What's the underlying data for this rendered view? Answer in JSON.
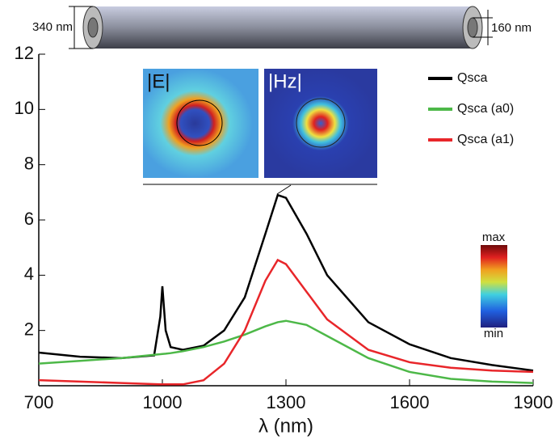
{
  "chart_data": {
    "type": "line",
    "x": [
      700,
      800,
      900,
      980,
      995,
      1000,
      1008,
      1020,
      1050,
      1100,
      1150,
      1200,
      1250,
      1280,
      1300,
      1350,
      1400,
      1500,
      1600,
      1700,
      1800,
      1900
    ],
    "series": [
      {
        "name": "Qsca",
        "color": "#000000",
        "values": [
          1.2,
          1.05,
          1.0,
          1.1,
          2.5,
          3.6,
          2.0,
          1.4,
          1.3,
          1.45,
          2.0,
          3.2,
          5.5,
          6.9,
          6.8,
          5.5,
          4.0,
          2.3,
          1.5,
          1.0,
          0.75,
          0.55
        ]
      },
      {
        "name": "Qsca (a0)",
        "color": "#4db848",
        "values": [
          0.8,
          0.9,
          1.0,
          1.12,
          1.14,
          1.15,
          1.16,
          1.18,
          1.25,
          1.4,
          1.6,
          1.85,
          2.15,
          2.3,
          2.35,
          2.2,
          1.8,
          1.0,
          0.5,
          0.25,
          0.15,
          0.1
        ]
      },
      {
        "name": "Qsca (a1)",
        "color": "#e8262a",
        "values": [
          0.2,
          0.15,
          0.1,
          0.06,
          0.05,
          0.05,
          0.05,
          0.05,
          0.05,
          0.2,
          0.8,
          2.0,
          3.8,
          4.55,
          4.4,
          3.4,
          2.4,
          1.3,
          0.85,
          0.65,
          0.55,
          0.5
        ]
      }
    ],
    "x_label": "λ (nm)",
    "xlim": [
      700,
      1900
    ],
    "xticks": [
      700,
      1000,
      1300,
      1600,
      1900
    ],
    "ylim": [
      0,
      12
    ],
    "yticks": [
      2,
      4,
      6,
      8,
      10,
      12
    ],
    "legend": "upper right",
    "annotations": {
      "outer_diameter": "340 nm",
      "inner_diameter": "160 nm",
      "inset_e": "|E|",
      "inset_h": "|Hz|",
      "colorbar_max": "max",
      "colorbar_min": "min"
    }
  }
}
